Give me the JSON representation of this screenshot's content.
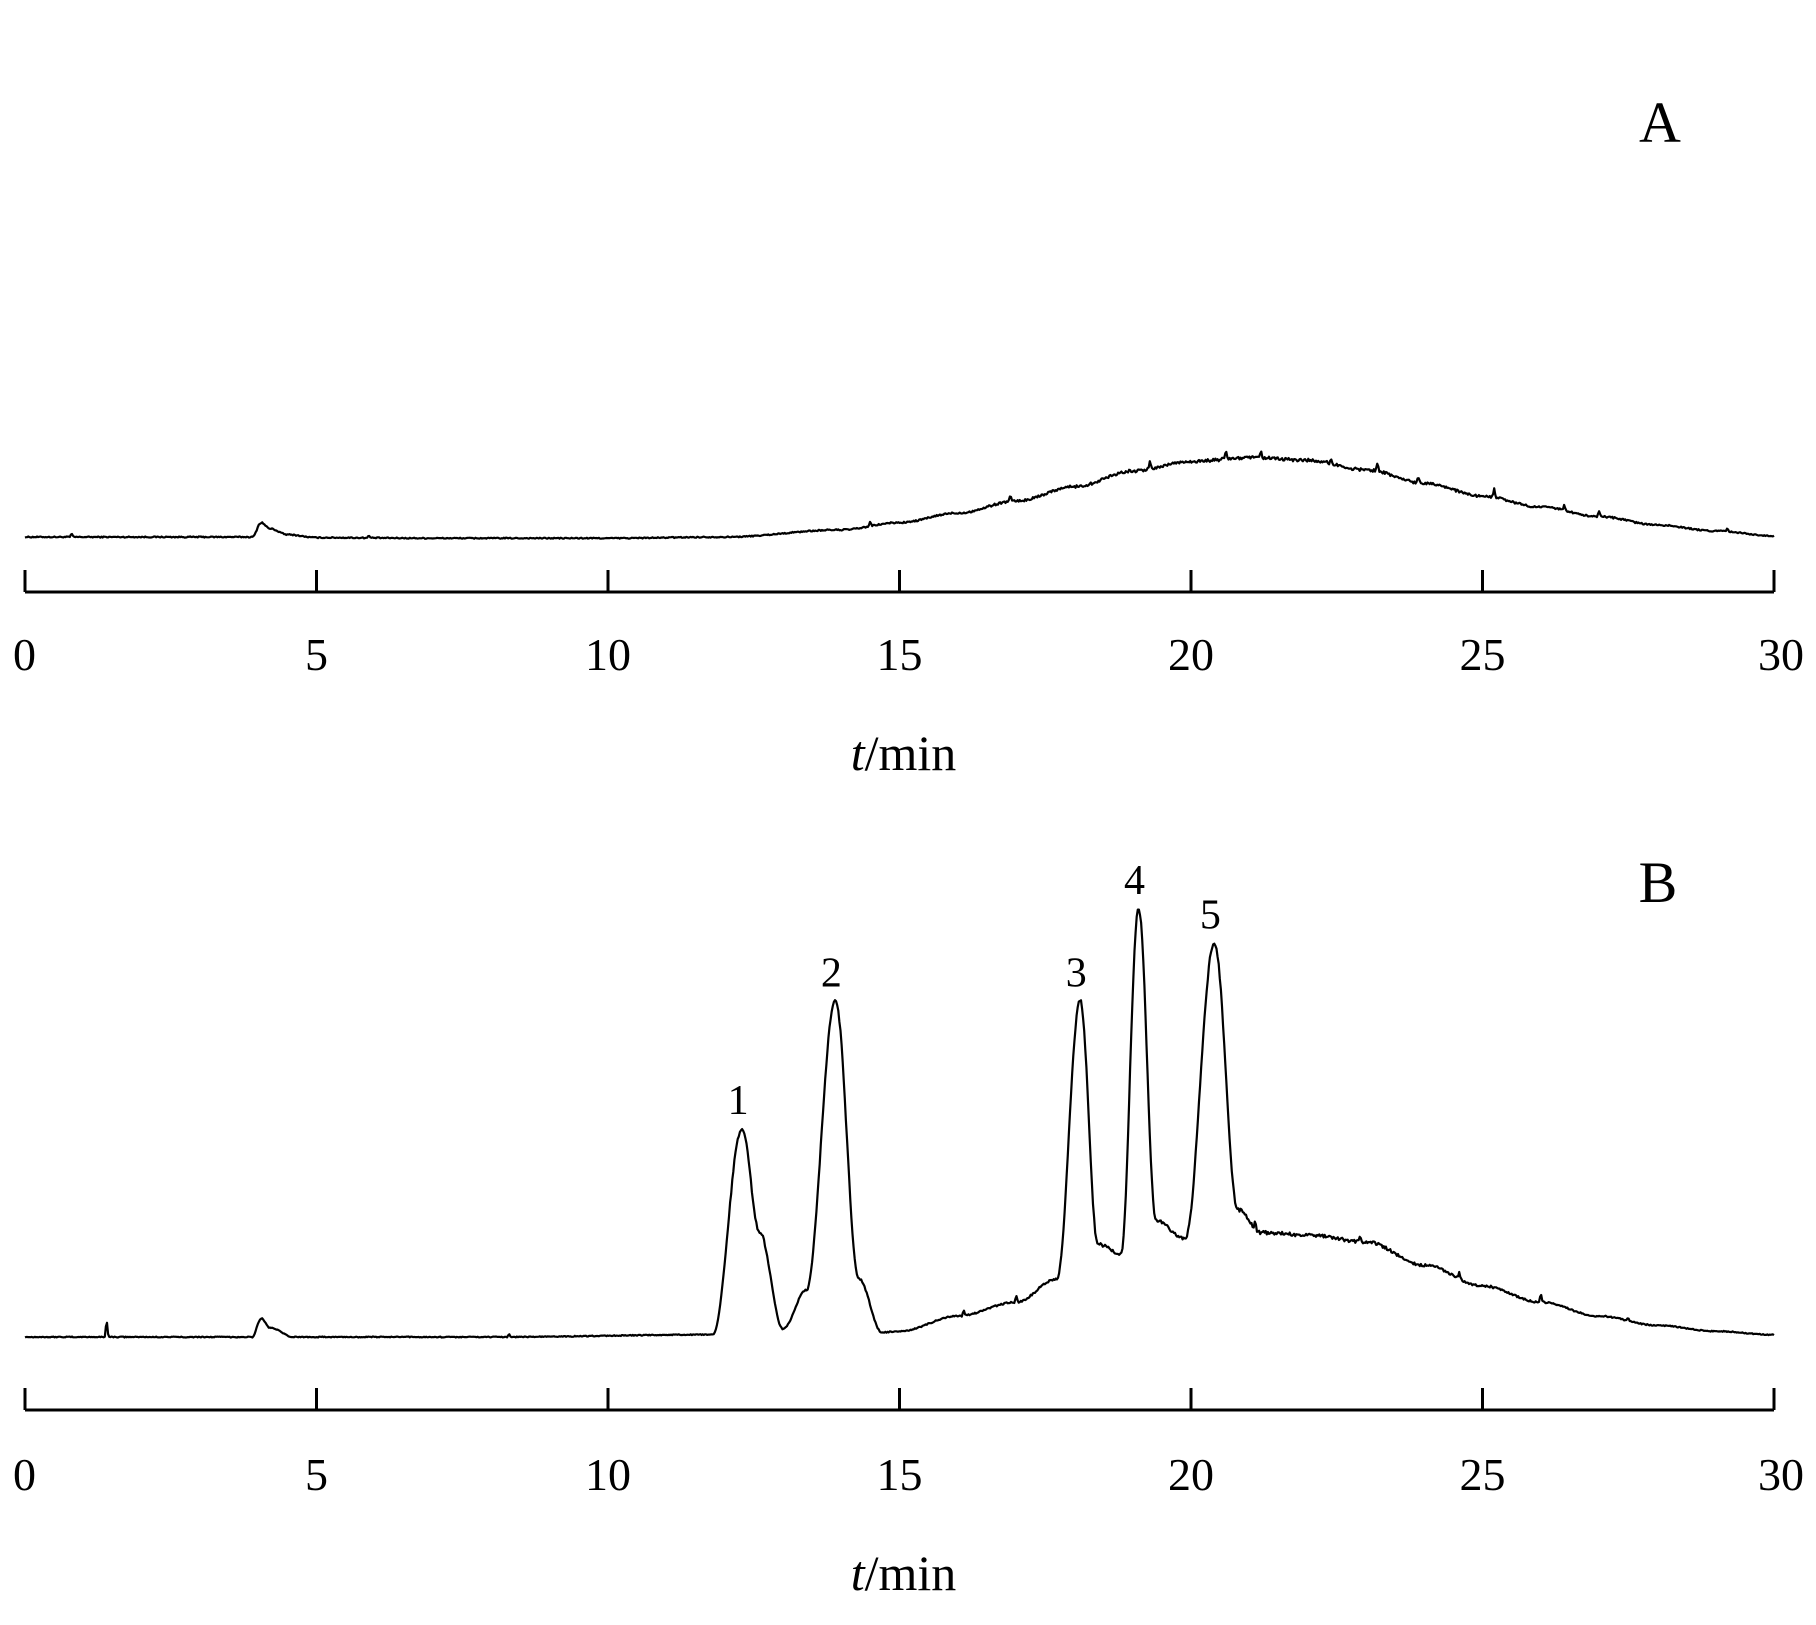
{
  "chart_data": [
    {
      "type": "line",
      "panel_label": "A",
      "xlabel_italic": "t",
      "xlabel_rest": "/min",
      "xlim": [
        0,
        30
      ],
      "xticks": [
        0,
        5,
        10,
        15,
        20,
        25,
        30
      ],
      "grid": false,
      "baseline_noise": 0.012,
      "series": [
        {
          "x": [
            0,
            0.8,
            3.9,
            4.05,
            4.2,
            4.5,
            5,
            7,
            10,
            12,
            14,
            15,
            16,
            17,
            18,
            19,
            20,
            21,
            22,
            23,
            24,
            25,
            26,
            27,
            28,
            29,
            30
          ],
          "y": [
            0,
            0,
            0,
            0.12,
            0.07,
            0.02,
            -0.005,
            -0.01,
            -0.01,
            0,
            0.06,
            0.12,
            0.2,
            0.3,
            0.42,
            0.55,
            0.63,
            0.66,
            0.64,
            0.56,
            0.45,
            0.34,
            0.25,
            0.17,
            0.1,
            0.05,
            0.01
          ],
          "spikes": [
            [
              0.8,
              0.03
            ],
            [
              5.9,
              0.02
            ],
            [
              14.5,
              0.04
            ],
            [
              16.9,
              0.05
            ],
            [
              19.3,
              0.07
            ],
            [
              20.6,
              0.08
            ],
            [
              21.2,
              0.06
            ],
            [
              22.4,
              0.05
            ],
            [
              23.2,
              0.09
            ],
            [
              23.9,
              0.06
            ],
            [
              25.2,
              0.07
            ],
            [
              26.4,
              0.04
            ],
            [
              27.0,
              0.05
            ],
            [
              29.2,
              0.03
            ]
          ]
        }
      ]
    },
    {
      "type": "line",
      "panel_label": "B",
      "xlabel_italic": "t",
      "xlabel_rest": "/min",
      "xlim": [
        0,
        30
      ],
      "xticks": [
        0,
        5,
        10,
        15,
        20,
        25,
        30
      ],
      "grid": false,
      "baseline_noise": 0.01,
      "series": [
        {
          "x": [
            0,
            3.9,
            4.05,
            4.2,
            4.6,
            5,
            8,
            11.8,
            12.3,
            12.6,
            13.0,
            13.4,
            13.9,
            14.3,
            14.7,
            15,
            16,
            17,
            17.7,
            18.1,
            18.4,
            18.8,
            19.1,
            19.4,
            19.9,
            20.4,
            20.8,
            21.2,
            22,
            23,
            24,
            25,
            26,
            27,
            28,
            29,
            30
          ],
          "y": [
            0,
            0,
            0.16,
            0.08,
            0,
            0,
            0,
            0.02,
            1.8,
            0.9,
            0.07,
            0.4,
            2.9,
            0.5,
            0.04,
            0.05,
            0.18,
            0.3,
            0.5,
            2.9,
            0.8,
            0.72,
            3.7,
            1.0,
            0.85,
            3.4,
            1.1,
            0.9,
            0.88,
            0.82,
            0.62,
            0.44,
            0.3,
            0.18,
            0.1,
            0.05,
            0.02
          ],
          "peaks": [
            {
              "label": "1",
              "x": 12.3,
              "height": 1.8
            },
            {
              "label": "2",
              "x": 13.9,
              "height": 2.9
            },
            {
              "label": "3",
              "x": 18.1,
              "height": 2.9
            },
            {
              "label": "4",
              "x": 19.1,
              "height": 3.7
            },
            {
              "label": "5",
              "x": 20.4,
              "height": 3.4
            }
          ],
          "spikes": [
            [
              1.4,
              0.16
            ],
            [
              8.3,
              0.03
            ],
            [
              16.1,
              0.05
            ],
            [
              17.0,
              0.06
            ],
            [
              21.1,
              0.08
            ],
            [
              22.9,
              0.07
            ],
            [
              24.6,
              0.06
            ],
            [
              26.0,
              0.07
            ],
            [
              27.5,
              0.03
            ]
          ]
        }
      ]
    }
  ]
}
